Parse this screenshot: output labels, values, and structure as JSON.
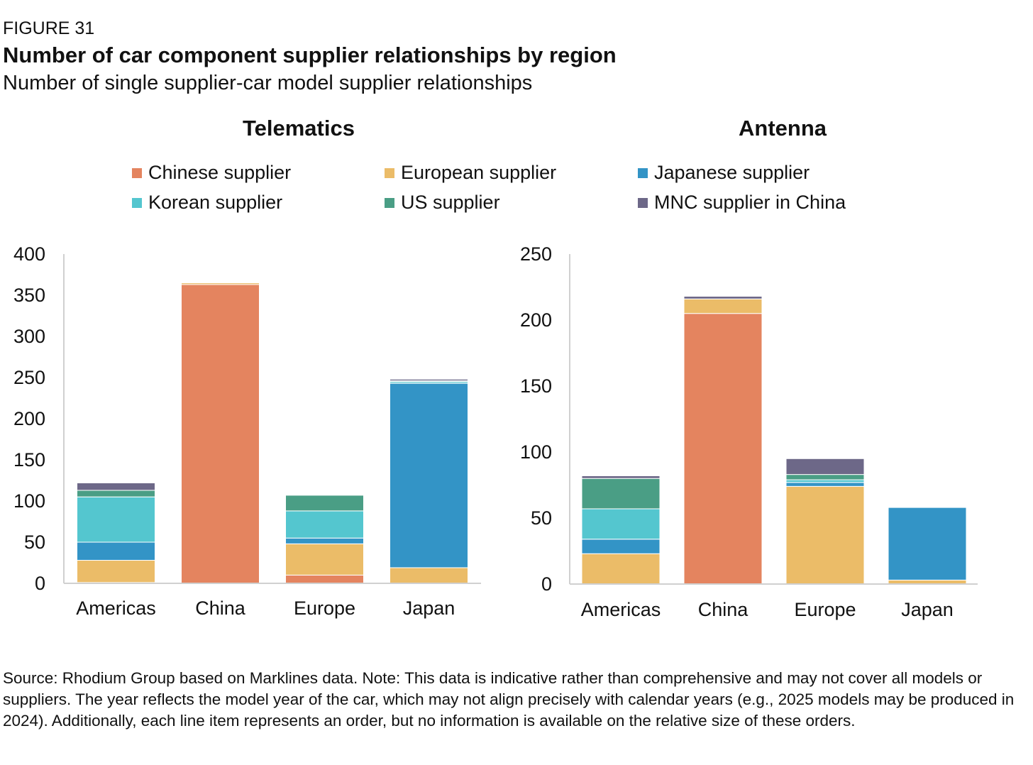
{
  "header": {
    "figure_label": "FIGURE 31",
    "title": "Number of car component supplier relationships by region",
    "subtitle": "Number of single supplier-car model supplier relationships"
  },
  "legend": {
    "items": [
      {
        "label": "Chinese supplier",
        "color": "#E4845F"
      },
      {
        "label": "European supplier",
        "color": "#EBBC68"
      },
      {
        "label": "Japanese supplier",
        "color": "#3394C6"
      },
      {
        "label": "Korean supplier",
        "color": "#54C6CF"
      },
      {
        "label": "US supplier",
        "color": "#4A9E85"
      },
      {
        "label": "MNC supplier in China",
        "color": "#6D6888"
      }
    ]
  },
  "chart_data": [
    {
      "type": "bar",
      "stacked": true,
      "title": "Telematics",
      "categories": [
        "Americas",
        "China",
        "Europe",
        "Japan"
      ],
      "ylim": [
        0,
        400
      ],
      "yticks": [
        0,
        50,
        100,
        150,
        200,
        250,
        300,
        350,
        400
      ],
      "grid": false,
      "series": [
        {
          "name": "Chinese supplier",
          "color": "#E4845F",
          "values": [
            1,
            363,
            10,
            0
          ]
        },
        {
          "name": "European supplier",
          "color": "#EBBC68",
          "values": [
            27,
            2,
            38,
            19
          ]
        },
        {
          "name": "Japanese supplier",
          "color": "#3394C6",
          "values": [
            22,
            0,
            7,
            224
          ]
        },
        {
          "name": "Korean supplier",
          "color": "#54C6CF",
          "values": [
            55,
            0,
            33,
            2
          ]
        },
        {
          "name": "US supplier",
          "color": "#4A9E85",
          "values": [
            8,
            0,
            19,
            1
          ]
        },
        {
          "name": "MNC supplier in China",
          "color": "#6D6888",
          "values": [
            9,
            0,
            0,
            2
          ]
        }
      ]
    },
    {
      "type": "bar",
      "stacked": true,
      "title": "Antenna",
      "categories": [
        "Americas",
        "China",
        "Europe",
        "Japan"
      ],
      "ylim": [
        0,
        250
      ],
      "yticks": [
        0,
        50,
        100,
        150,
        200,
        250
      ],
      "grid": false,
      "series": [
        {
          "name": "Chinese supplier",
          "color": "#E4845F",
          "values": [
            0,
            205,
            0,
            0
          ]
        },
        {
          "name": "European supplier",
          "color": "#EBBC68",
          "values": [
            23,
            11,
            74,
            3
          ]
        },
        {
          "name": "Japanese supplier",
          "color": "#3394C6",
          "values": [
            11,
            0,
            3,
            55
          ]
        },
        {
          "name": "Korean supplier",
          "color": "#54C6CF",
          "values": [
            23,
            0,
            2,
            0
          ]
        },
        {
          "name": "US supplier",
          "color": "#4A9E85",
          "values": [
            23,
            0,
            4,
            0
          ]
        },
        {
          "name": "MNC supplier in China",
          "color": "#6D6888",
          "values": [
            2,
            2,
            12,
            0
          ]
        }
      ]
    }
  ],
  "footer": {
    "source_note": "Source: Rhodium Group based on Marklines data. Note: This data is indicative rather than comprehensive and may not cover all models or suppliers. The year reflects the model year of the car, which may not align precisely with calendar years (e.g., 2025 models may be produced in 2024). Additionally, each line item represents an order, but no information is available on the relative size of these orders."
  }
}
